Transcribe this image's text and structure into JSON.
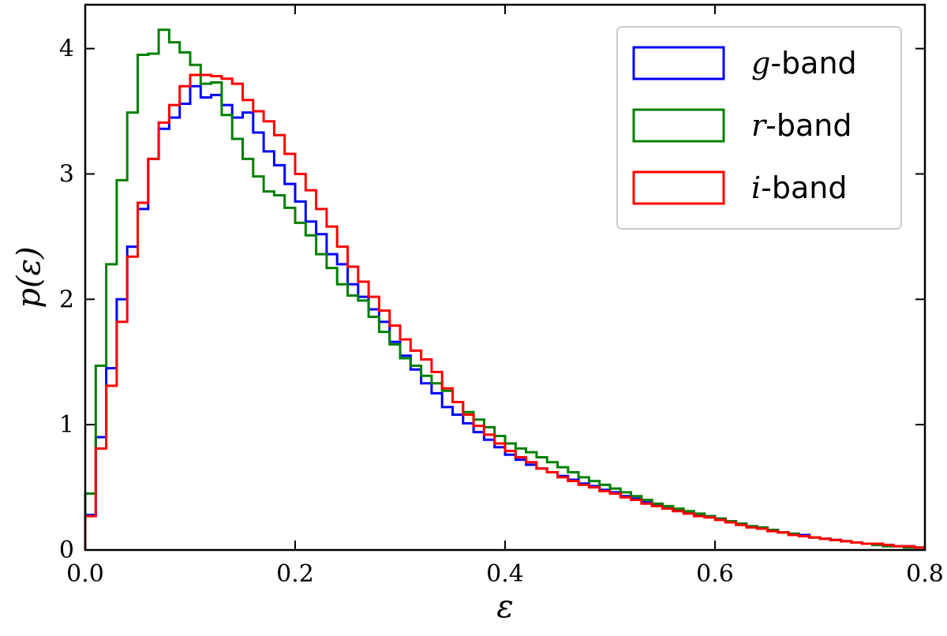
{
  "chart_data": {
    "type": "histogram",
    "xlabel": "ε",
    "ylabel": "p(ε)",
    "xlim": [
      0.0,
      0.8
    ],
    "ylim": [
      0.0,
      4.35
    ],
    "xticks": [
      0.0,
      0.2,
      0.4,
      0.6,
      0.8
    ],
    "xtick_labels": [
      "0.0",
      "0.2",
      "0.4",
      "0.6",
      "0.8"
    ],
    "yticks": [
      0,
      1,
      2,
      3,
      4
    ],
    "ytick_labels": [
      "0",
      "1",
      "2",
      "3",
      "4"
    ],
    "grid": false,
    "legend_position": "top-right",
    "bin_width": 0.01,
    "bin_start": 0.0,
    "series": [
      {
        "name_math": "g",
        "name_text": "-band",
        "color": "#0000ff",
        "values": [
          0.28,
          0.9,
          1.45,
          2.0,
          2.42,
          2.72,
          3.12,
          3.36,
          3.45,
          3.56,
          3.7,
          3.61,
          3.63,
          3.55,
          3.45,
          3.49,
          3.33,
          3.18,
          3.07,
          2.92,
          2.78,
          2.62,
          2.52,
          2.36,
          2.28,
          2.12,
          2.02,
          1.92,
          1.82,
          1.66,
          1.55,
          1.44,
          1.33,
          1.25,
          1.14,
          1.08,
          1.01,
          0.94,
          0.88,
          0.82,
          0.76,
          0.72,
          0.68,
          0.65,
          0.62,
          0.59,
          0.56,
          0.53,
          0.51,
          0.48,
          0.46,
          0.43,
          0.41,
          0.38,
          0.36,
          0.34,
          0.32,
          0.3,
          0.28,
          0.27,
          0.25,
          0.23,
          0.21,
          0.19,
          0.17,
          0.16,
          0.14,
          0.13,
          0.12,
          0.1,
          0.09,
          0.08,
          0.07,
          0.06,
          0.05,
          0.04,
          0.04,
          0.03,
          0.03,
          0.02
        ]
      },
      {
        "name_math": "r",
        "name_text": "-band",
        "color": "#008000",
        "values": [
          0.45,
          1.47,
          2.28,
          2.95,
          3.49,
          3.95,
          3.96,
          4.15,
          4.05,
          3.97,
          3.87,
          3.72,
          3.73,
          3.47,
          3.28,
          3.12,
          2.98,
          2.86,
          2.83,
          2.73,
          2.61,
          2.51,
          2.36,
          2.25,
          2.12,
          2.03,
          1.99,
          1.86,
          1.74,
          1.64,
          1.53,
          1.47,
          1.39,
          1.33,
          1.27,
          1.18,
          1.1,
          1.04,
          0.98,
          0.91,
          0.85,
          0.81,
          0.78,
          0.74,
          0.7,
          0.66,
          0.62,
          0.58,
          0.55,
          0.52,
          0.49,
          0.46,
          0.43,
          0.4,
          0.37,
          0.35,
          0.33,
          0.31,
          0.29,
          0.27,
          0.25,
          0.23,
          0.21,
          0.19,
          0.18,
          0.16,
          0.14,
          0.13,
          0.11,
          0.1,
          0.09,
          0.08,
          0.07,
          0.06,
          0.05,
          0.04,
          0.03,
          0.03,
          0.02,
          0.02
        ]
      },
      {
        "name_math": "i",
        "name_text": "-band",
        "color": "#ff0000",
        "values": [
          0.27,
          0.81,
          1.31,
          1.82,
          2.34,
          2.77,
          3.12,
          3.41,
          3.55,
          3.7,
          3.79,
          3.79,
          3.78,
          3.76,
          3.72,
          3.59,
          3.5,
          3.42,
          3.31,
          3.16,
          3.0,
          2.87,
          2.72,
          2.58,
          2.42,
          2.26,
          2.14,
          2.02,
          1.91,
          1.79,
          1.68,
          1.59,
          1.52,
          1.42,
          1.29,
          1.18,
          1.08,
          0.99,
          0.92,
          0.85,
          0.79,
          0.74,
          0.7,
          0.65,
          0.62,
          0.58,
          0.55,
          0.52,
          0.5,
          0.47,
          0.45,
          0.42,
          0.4,
          0.37,
          0.35,
          0.33,
          0.31,
          0.29,
          0.27,
          0.26,
          0.24,
          0.22,
          0.2,
          0.18,
          0.17,
          0.15,
          0.14,
          0.12,
          0.11,
          0.1,
          0.09,
          0.08,
          0.07,
          0.06,
          0.05,
          0.05,
          0.04,
          0.03,
          0.03,
          0.02
        ]
      }
    ]
  }
}
